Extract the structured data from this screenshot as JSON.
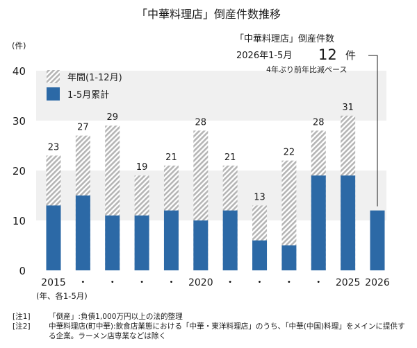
{
  "chart_data": {
    "type": "bar",
    "title": "「中華料理店」倒産件数推移",
    "ylabel": "(件)",
    "ylim": [
      0,
      40
    ],
    "yticks": [
      0,
      10,
      20,
      30,
      40
    ],
    "categories": [
      "2015",
      "・",
      "・",
      "・",
      "・",
      "2020",
      "・",
      "・",
      "・",
      "・",
      "2025",
      "2026"
    ],
    "x_caption": "(年、各1-5月)",
    "series": [
      {
        "name": "年間(1-12月)",
        "color": "#b5b5b5",
        "pattern": "diagonal-hatch",
        "values": [
          23,
          27,
          29,
          19,
          21,
          28,
          21,
          13,
          22,
          28,
          31,
          null
        ]
      },
      {
        "name": "1-5月累計",
        "color": "#2c69a6",
        "values": [
          13,
          15,
          11,
          11,
          12,
          10,
          12,
          6,
          5,
          19,
          19,
          12
        ]
      }
    ],
    "data_labels": [
      "23",
      "27",
      "29",
      "19",
      "21",
      "28",
      "21",
      "13",
      "22",
      "28",
      "31"
    ],
    "legend_position": "top-left",
    "annotation": {
      "line1": "「中華料理店」倒産件数",
      "line2_prefix": "2026年1-5月",
      "line2_value": "12",
      "line2_unit": "件",
      "line3": "4年ぶり前年比減ペース"
    }
  },
  "notes": [
    {
      "tag": "[注1]",
      "text": "「倒産」:負債1,000万円以上の法的整理"
    },
    {
      "tag": "[注2]",
      "text": "中華料理店(町中華):飲食店業態における「中華・東洋料理店」のうち、「中華(中国)料理」をメインに提供する企業。ラーメン店専業などは除く"
    }
  ]
}
